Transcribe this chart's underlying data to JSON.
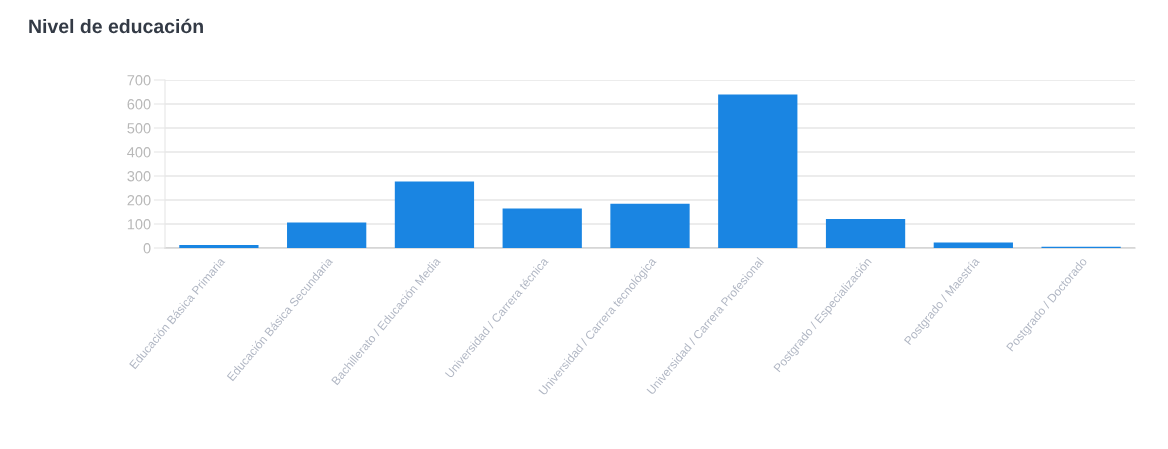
{
  "chart_data": {
    "type": "bar",
    "title": "Nivel de educación",
    "categories": [
      "Educación Básica Primaria",
      "Educación Básica Secundaria",
      "Bachillerato / Educación Media",
      "Universidad / Carrera técnica",
      "Universidad / Carrera tecnológica",
      "Universidad / Carrera Profesional",
      "Postgrado / Especialización",
      "Postgrado / Maestría",
      "Postgrado / Doctorado"
    ],
    "values": [
      9,
      103,
      274,
      161,
      181,
      636,
      117,
      19,
      2
    ],
    "color": "#1a85e2",
    "ylim": [
      0,
      700
    ],
    "yticks": [
      0,
      100,
      200,
      300,
      400,
      500,
      600,
      700
    ],
    "grid": "y"
  }
}
